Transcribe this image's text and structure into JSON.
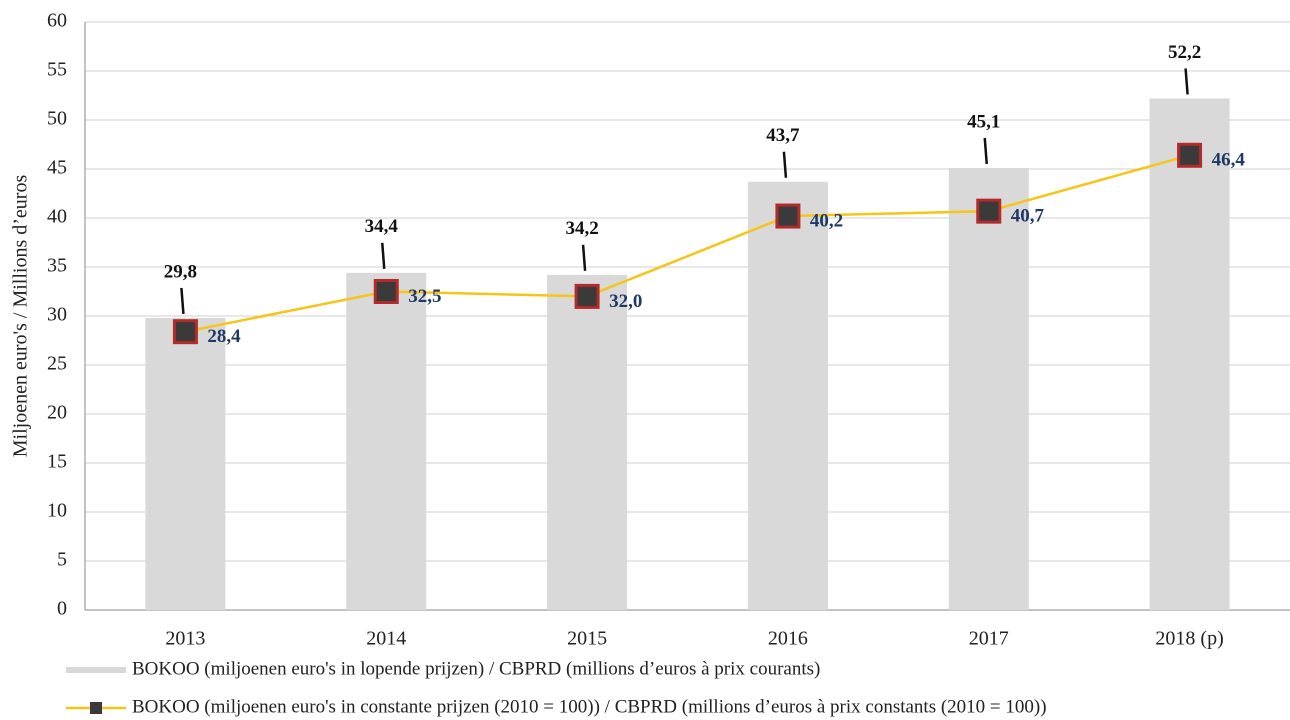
{
  "chart_data": {
    "type": "bar",
    "y_label": "Miljoenen euro's / Millions d’euros",
    "categories": [
      "2013",
      "2014",
      "2015",
      "2016",
      "2017",
      "2018 (p)"
    ],
    "series": [
      {
        "name": "BOKOO (miljoenen euro's in lopende prijzen) / CBPRD (millions d’euros à prix courants)",
        "type": "bar",
        "color": "#d9d9d9",
        "values": [
          29.8,
          34.4,
          34.2,
          43.7,
          45.1,
          52.2
        ],
        "value_labels": [
          "29,8",
          "34,4",
          "34,2",
          "43,7",
          "45,1",
          "52,2"
        ]
      },
      {
        "name": "BOKOO (miljoenen euro's in constante prijzen (2010 = 100)) / CBPRD (millions d’euros à prix constants (2010 = 100))",
        "type": "line",
        "color": "#f5c518",
        "values": [
          28.4,
          32.5,
          32.0,
          40.2,
          40.7,
          46.4
        ],
        "value_labels": [
          "28,4",
          "32,5",
          "32,0",
          "40,2",
          "40,7",
          "46,4"
        ]
      }
    ],
    "ylim": [
      0,
      60
    ],
    "yticks": [
      0,
      5,
      10,
      15,
      20,
      25,
      30,
      35,
      40,
      45,
      50,
      55,
      60
    ],
    "grid": true
  }
}
